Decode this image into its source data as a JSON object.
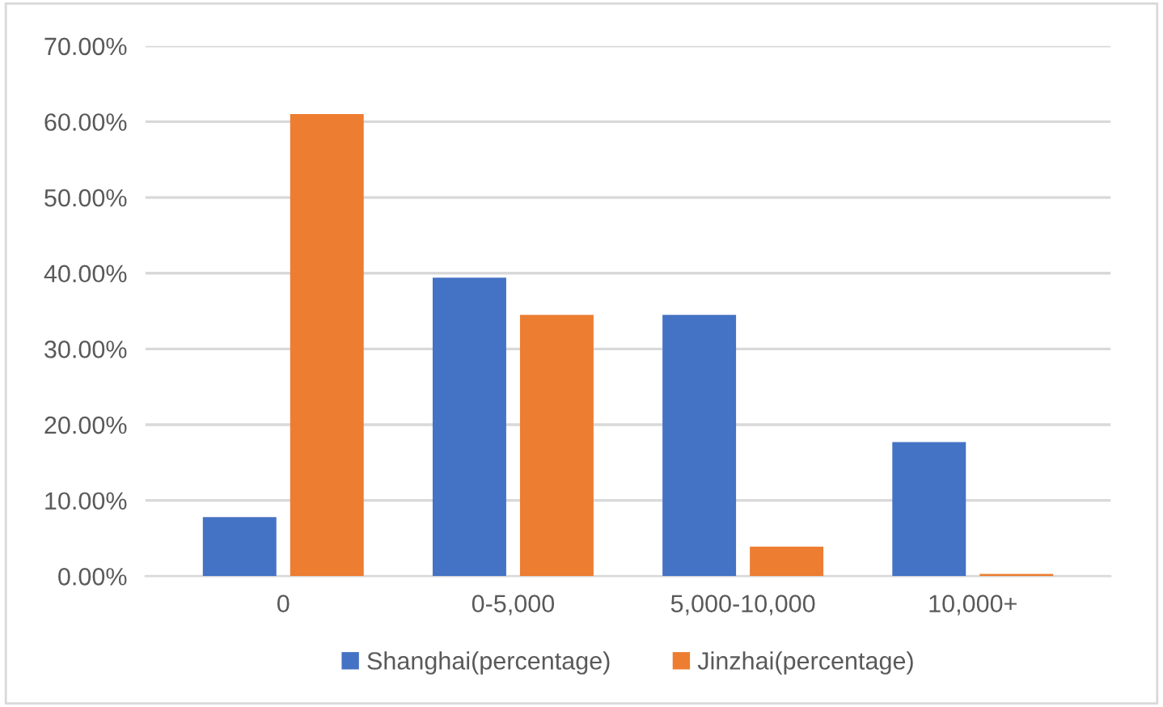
{
  "chart_data": {
    "type": "bar",
    "categories": [
      "0",
      "0-5,000",
      "5,000-10,000",
      "10,000+"
    ],
    "series": [
      {
        "name": "Shanghai(percentage)",
        "color": "#4472c4",
        "values": [
          7.8,
          39.4,
          34.5,
          17.7
        ]
      },
      {
        "name": "Jinzhai(percentage)",
        "color": "#ed7d31",
        "values": [
          61.0,
          34.5,
          3.9,
          0.3
        ]
      }
    ],
    "ylim": [
      0,
      70
    ],
    "yticks": [
      {
        "value": 0,
        "label": "0.00%"
      },
      {
        "value": 10,
        "label": "10.00%"
      },
      {
        "value": 20,
        "label": "20.00%"
      },
      {
        "value": 30,
        "label": "30.00%"
      },
      {
        "value": 40,
        "label": "40.00%"
      },
      {
        "value": 50,
        "label": "50.00%"
      },
      {
        "value": 60,
        "label": "60.00%"
      },
      {
        "value": 70,
        "label": "70.00%"
      }
    ],
    "grid": "y",
    "legend": "bottom"
  }
}
